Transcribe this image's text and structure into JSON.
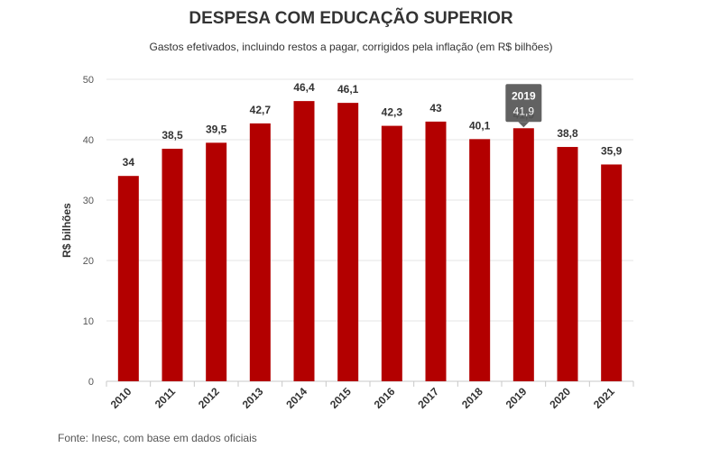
{
  "chart_data": {
    "type": "bar",
    "title": "DESPESA COM EDUCAÇÃO SUPERIOR",
    "subtitle": "Gastos efetivados, incluindo restos a pagar, corrigidos pela inflação (em R$ bilhões)",
    "xlabel": "",
    "ylabel": "R$ bilhões",
    "categories": [
      "2010",
      "2011",
      "2012",
      "2013",
      "2014",
      "2015",
      "2016",
      "2017",
      "2018",
      "2019",
      "2020",
      "2021"
    ],
    "values": [
      34,
      38.5,
      39.5,
      42.7,
      46.4,
      46.1,
      42.3,
      43,
      40.1,
      41.9,
      38.8,
      35.9
    ],
    "value_labels": [
      "34",
      "38,5",
      "39,5",
      "42,7",
      "46,4",
      "46,1",
      "42,3",
      "43",
      "40,1",
      "41,9",
      "38,8",
      "35,9"
    ],
    "ylim": [
      0,
      50
    ],
    "yticks": [
      0,
      10,
      20,
      30,
      40,
      50
    ],
    "grid": true,
    "bar_color": "#b30000",
    "tooltip": {
      "category": "2019",
      "value": "41,9",
      "color": "#555555"
    }
  },
  "source": "Fonte: Inesc, com base em dados oficiais"
}
